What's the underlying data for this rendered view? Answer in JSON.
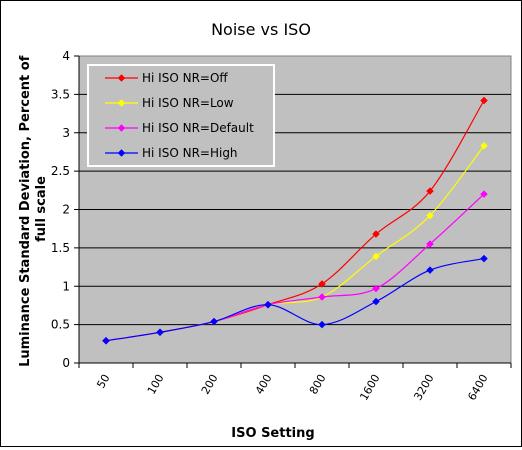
{
  "chart_data": {
    "type": "line",
    "title": "Noise  vs ISO",
    "xlabel": "ISO Setting",
    "ylabel": "Luminance Standard Deviation, Percent of full scale",
    "ylabel_lines": [
      "Luminance Standard Deviation, Percent of",
      "full scale"
    ],
    "categories": [
      "50",
      "100",
      "200",
      "400",
      "800",
      "1600",
      "3200",
      "6400"
    ],
    "y_ticks": [
      "0",
      "0.5",
      "1",
      "1.5",
      "2",
      "2.5",
      "3",
      "3.5",
      "4"
    ],
    "ylim": [
      0,
      4
    ],
    "grid": "horizontal",
    "legend_position": "top-left",
    "plot_background": "#c0c0c0",
    "series": [
      {
        "name": "Hi ISO NR=Off",
        "color": "#ff0000",
        "values": [
          0.29,
          0.4,
          0.54,
          0.76,
          1.03,
          1.68,
          2.24,
          3.42
        ]
      },
      {
        "name": "Hi ISO NR=Low",
        "color": "#ffff00",
        "values": [
          0.29,
          0.4,
          0.54,
          0.76,
          0.86,
          1.39,
          1.92,
          2.83
        ]
      },
      {
        "name": "Hi ISO NR=Default",
        "color": "#ff00ff",
        "values": [
          0.29,
          0.4,
          0.54,
          0.76,
          0.86,
          0.97,
          1.55,
          2.2
        ]
      },
      {
        "name": "Hi ISO NR=High",
        "color": "#0000ff",
        "values": [
          0.29,
          0.4,
          0.54,
          0.76,
          0.5,
          0.8,
          1.21,
          1.36
        ]
      }
    ]
  }
}
